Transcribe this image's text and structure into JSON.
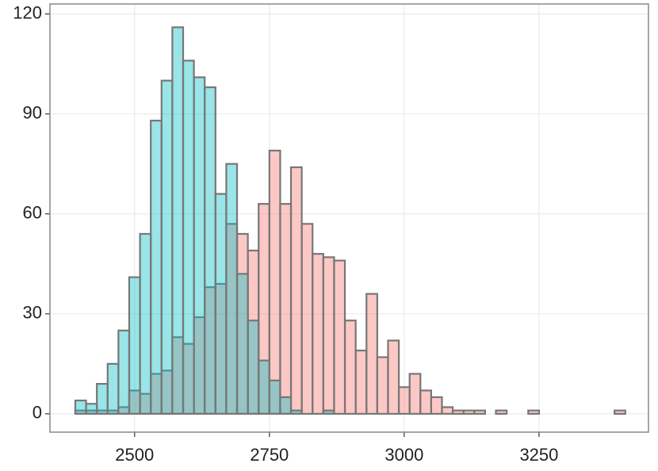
{
  "chart_data": {
    "type": "histogram",
    "bins": [
      2390,
      2410,
      2430,
      2450,
      2470,
      2490,
      2510,
      2530,
      2550,
      2570,
      2590,
      2610,
      2630,
      2650,
      2670,
      2690,
      2710,
      2730,
      2750,
      2770,
      2790,
      2810,
      2830,
      2850,
      2870,
      2890,
      2910,
      2930,
      2950,
      2970,
      2990,
      3010,
      3030,
      3050,
      3070,
      3090,
      3110,
      3130,
      3150,
      3170,
      3190,
      3210,
      3230,
      3250,
      3270,
      3290,
      3310,
      3330,
      3350,
      3370,
      3390,
      3410
    ],
    "series": [
      {
        "color": "#F8766D",
        "values": [
          1,
          1,
          1,
          1,
          2,
          7,
          6,
          12,
          13,
          23,
          21,
          29,
          38,
          39,
          57,
          54,
          49,
          63,
          79,
          63,
          74,
          57,
          48,
          47,
          46,
          28,
          19,
          36,
          17,
          22,
          8,
          12,
          7,
          5,
          2,
          1,
          1,
          1,
          0,
          1,
          0,
          0,
          1,
          0,
          0,
          0,
          0,
          0,
          0,
          0,
          1
        ]
      },
      {
        "color": "#00BFC4",
        "values": [
          4,
          3,
          9,
          15,
          25,
          41,
          54,
          88,
          100,
          116,
          106,
          101,
          98,
          66,
          75,
          42,
          28,
          16,
          10,
          5,
          1,
          0,
          0,
          1,
          0,
          0,
          0,
          0,
          0,
          0,
          0,
          0,
          0,
          0,
          0,
          0,
          0,
          0,
          0,
          0,
          0,
          0,
          0,
          0,
          0,
          0,
          0,
          0,
          0,
          0,
          0
        ]
      }
    ],
    "xlim": [
      2343,
      3453
    ],
    "ylim": [
      -5.5,
      123
    ],
    "xticks": [
      2500,
      2750,
      3000,
      3250
    ],
    "yticks": [
      0,
      30,
      60,
      90,
      120
    ],
    "grid": true
  }
}
